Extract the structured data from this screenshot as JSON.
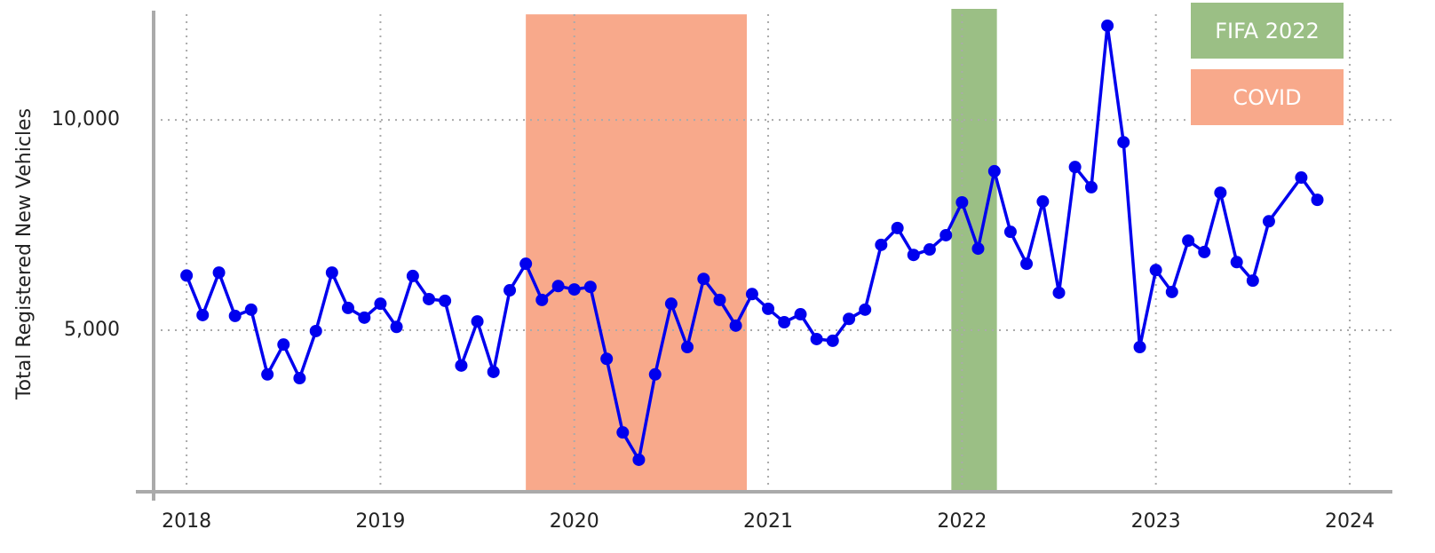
{
  "chart_data": {
    "type": "line",
    "y_label": "Total Registered New Vehicles",
    "xlim": [
      2017.83,
      2024.22
    ],
    "xticks": [
      2018,
      2019,
      2020,
      2021,
      2022,
      2023,
      2024
    ],
    "ylim": [
      1160,
      12640
    ],
    "yticks": [
      {
        "value": 5000,
        "label": "5,000"
      },
      {
        "value": 10000,
        "label": "10,000"
      }
    ],
    "grid": true,
    "spans": [
      {
        "name": "COVID",
        "start": 2019.75,
        "end": 2020.89,
        "top": 12510,
        "color": "#f8a98b"
      },
      {
        "name": "FIFA 2022",
        "start": 2021.945,
        "end": 2022.18,
        "top": 12640,
        "color": "#9bbf85"
      }
    ],
    "x": [
      2018,
      2018.083,
      2018.167,
      2018.25,
      2018.333,
      2018.417,
      2018.5,
      2018.583,
      2018.667,
      2018.75,
      2018.833,
      2018.917,
      2019,
      2019.083,
      2019.167,
      2019.25,
      2019.333,
      2019.417,
      2019.5,
      2019.583,
      2019.667,
      2019.75,
      2019.833,
      2019.917,
      2020,
      2020.083,
      2020.167,
      2020.25,
      2020.333,
      2020.417,
      2020.5,
      2020.583,
      2020.667,
      2020.75,
      2020.833,
      2020.917,
      2021,
      2021.083,
      2021.167,
      2021.25,
      2021.333,
      2021.417,
      2021.5,
      2021.583,
      2021.667,
      2021.75,
      2021.833,
      2021.917,
      2022,
      2022.083,
      2022.167,
      2022.25,
      2022.333,
      2022.417,
      2022.5,
      2022.583,
      2022.667,
      2022.75,
      2022.833,
      2022.917,
      2023,
      2023.083,
      2023.167,
      2023.25,
      2023.333,
      2023.417,
      2023.5,
      2023.583,
      2023.75,
      2023.833
    ],
    "series": [
      {
        "name": "Total Registered New Vehicles",
        "color": "#0000ee",
        "values": [
          6300,
          5360,
          6370,
          5340,
          5490,
          3950,
          4660,
          3860,
          4980,
          6370,
          5530,
          5300,
          5630,
          5080,
          6290,
          5740,
          5700,
          4160,
          5210,
          4010,
          5950,
          6580,
          5720,
          6050,
          5970,
          6030,
          4320,
          2570,
          1920,
          3950,
          5630,
          4600,
          6220,
          5720,
          5110,
          5860,
          5510,
          5190,
          5380,
          4790,
          4750,
          5270,
          5490,
          7030,
          7430,
          6790,
          6920,
          7260,
          8040,
          6940,
          8780,
          7340,
          6580,
          8060,
          5890,
          8880,
          8400,
          12240,
          9470,
          4600,
          6430,
          5910,
          7130,
          6860,
          8270,
          6620,
          6180,
          7590,
          8630,
          8100
        ]
      }
    ]
  }
}
